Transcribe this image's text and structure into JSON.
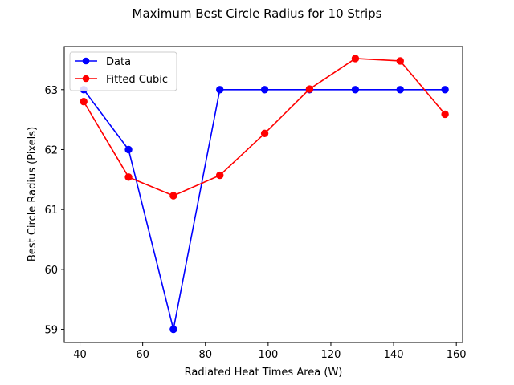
{
  "chart_data": {
    "type": "line",
    "title": "Maximum Best Circle Radius for 10 Strips",
    "xlabel": "Radiated Heat Times Area (W)",
    "ylabel": "Best Circle Radius (Pixels)",
    "xlim": [
      35,
      162
    ],
    "ylim": [
      58.78,
      63.72
    ],
    "xticks": [
      40,
      60,
      80,
      100,
      120,
      140,
      160
    ],
    "yticks": [
      59,
      60,
      61,
      62,
      63
    ],
    "grid": false,
    "legend_position": "upper-left",
    "series": [
      {
        "name": "Data",
        "color": "#0000ff",
        "marker": "circle",
        "x": [
          41.2,
          55.5,
          69.8,
          84.6,
          98.9,
          113.2,
          127.8,
          142.1,
          156.4
        ],
        "y": [
          63.0,
          62.0,
          59.0,
          63.0,
          63.0,
          63.0,
          63.0,
          63.0,
          63.0
        ]
      },
      {
        "name": "Fitted Cubic",
        "color": "#ff0000",
        "marker": "circle",
        "x": [
          41.2,
          55.5,
          69.8,
          84.6,
          98.9,
          113.2,
          127.8,
          142.1,
          156.4
        ],
        "y": [
          62.8,
          61.54,
          61.23,
          61.57,
          62.27,
          63.01,
          63.52,
          63.48,
          62.59
        ]
      }
    ]
  }
}
